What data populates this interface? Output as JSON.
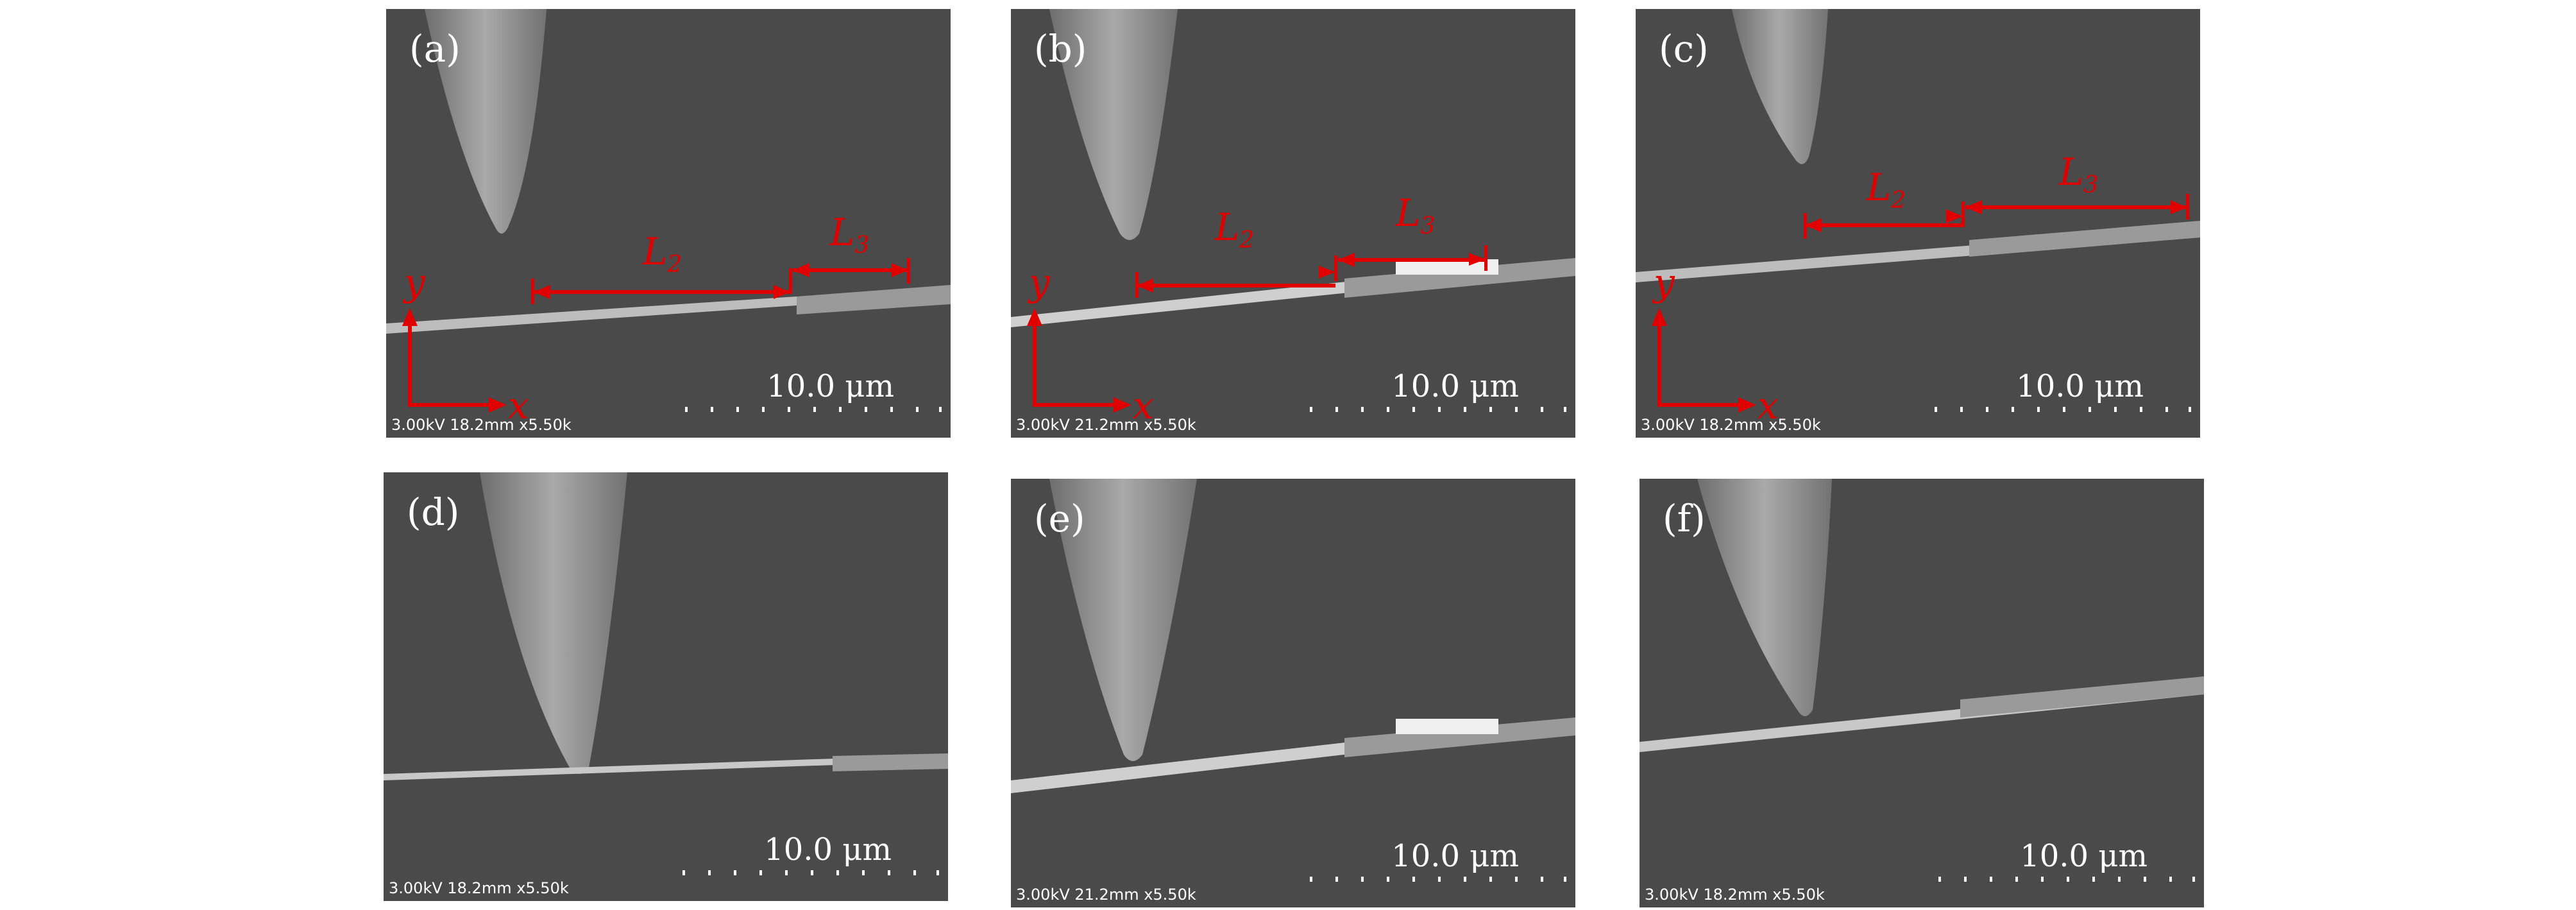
{
  "panels": [
    {
      "label": "(a)",
      "scale": "10.0 μm",
      "info": "3.00kV 18.2mm x5.50k",
      "annotations": {
        "L2": "L",
        "L3": "L",
        "sub2": "2",
        "sub3": "3",
        "y": "y",
        "x": "x"
      }
    },
    {
      "label": "(b)",
      "scale": "10.0 μm",
      "info": "3.00kV 21.2mm x5.50k",
      "annotations": {
        "L2": "L",
        "L3": "L",
        "sub2": "2",
        "sub3": "3",
        "y": "y",
        "x": "x"
      }
    },
    {
      "label": "(c)",
      "scale": "10.0 μm",
      "info": "3.00kV 18.2mm x5.50k",
      "annotations": {
        "L2": "L",
        "L3": "L",
        "sub2": "2",
        "sub3": "3",
        "y": "y",
        "x": "x"
      }
    },
    {
      "label": "(d)",
      "scale": "10.0 μm",
      "info": "3.00kV 18.2mm x5.50k"
    },
    {
      "label": "(e)",
      "scale": "10.0 μm",
      "info": "3.00kV 21.2mm x5.50k"
    },
    {
      "label": "(f)",
      "scale": "10.0 μm",
      "info": "3.00kV 18.2mm x5.50k"
    }
  ]
}
